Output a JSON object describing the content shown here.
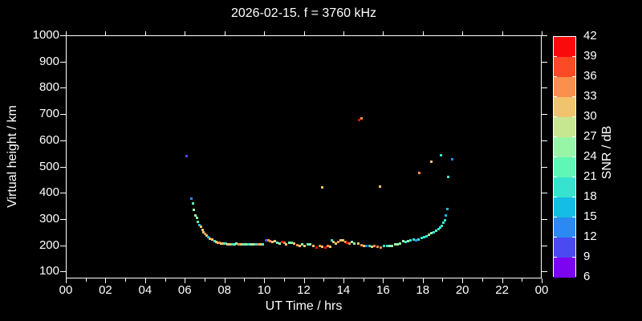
{
  "title": "2026-02-15. f = 3760 kHz",
  "colors": {
    "background": "#000000",
    "foreground": "#ffffff"
  },
  "x_axis": {
    "label": "UT Time / hrs",
    "tick_labels": [
      "00",
      "02",
      "04",
      "06",
      "08",
      "10",
      "12",
      "14",
      "16",
      "18",
      "20",
      "22",
      "00"
    ]
  },
  "y_axis": {
    "label": "Virtual height / km",
    "tick_labels": [
      "1000",
      "900",
      "800",
      "700",
      "600",
      "500",
      "400",
      "300",
      "200",
      "100"
    ]
  },
  "colorbar": {
    "label": "SNR / dB",
    "tick_labels": [
      "42",
      "39",
      "36",
      "33",
      "30",
      "27",
      "24",
      "21",
      "18",
      "15",
      "12",
      "9",
      "6"
    ],
    "colors_top_to_bottom": [
      "#fa0b0b",
      "#fb4a24",
      "#fb8f4c",
      "#f0c46c",
      "#c6e78f",
      "#97f5a7",
      "#5ff7b5",
      "#36e3cf",
      "#13bde5",
      "#2a89f2",
      "#4b49f2",
      "#7c04f0"
    ]
  },
  "chart_data": {
    "type": "scatter",
    "title": "2026-02-15. f = 3760 kHz",
    "xlabel": "UT Time / hrs",
    "ylabel": "Virtual height / km",
    "colorbar_label": "SNR / dB",
    "x_range_hours": [
      0,
      24
    ],
    "x_tick_step_hours": 2,
    "y_range_km": [
      70,
      1000
    ],
    "y_tick_step_km": 100,
    "snr_range_db": [
      6,
      42
    ],
    "snr_tick_step_db": 3,
    "grid": false,
    "legend": "colorbar-right",
    "points_format": [
      "ut_hour",
      "virtual_height_km",
      "snr_db"
    ],
    "points": [
      [
        6.07,
        542,
        10.5
      ],
      [
        6.28,
        382,
        13.5
      ],
      [
        6.36,
        361,
        22.5
      ],
      [
        6.42,
        337,
        25.5
      ],
      [
        6.5,
        318,
        25.5
      ],
      [
        6.56,
        306,
        25.5
      ],
      [
        6.62,
        291,
        22.5
      ],
      [
        6.68,
        279,
        16.5
      ],
      [
        6.76,
        273,
        31.5
      ],
      [
        6.84,
        261,
        31.5
      ],
      [
        6.92,
        252,
        31.5
      ],
      [
        7.0,
        246,
        34.5
      ],
      [
        7.08,
        240,
        31.5
      ],
      [
        7.16,
        234,
        16.5
      ],
      [
        7.24,
        228,
        31.5
      ],
      [
        7.36,
        224,
        31.5
      ],
      [
        7.48,
        218,
        19.5
      ],
      [
        7.56,
        216,
        31.5
      ],
      [
        7.64,
        214,
        31.5
      ],
      [
        7.72,
        213,
        34.5
      ],
      [
        7.8,
        211,
        31.5
      ],
      [
        7.88,
        210,
        31.5
      ],
      [
        7.96,
        209,
        22.5
      ],
      [
        8.04,
        208,
        19.5
      ],
      [
        8.12,
        207,
        31.5
      ],
      [
        8.22,
        207,
        31.5
      ],
      [
        8.34,
        206,
        19.5
      ],
      [
        8.46,
        207,
        22.5
      ],
      [
        8.58,
        208,
        25.5
      ],
      [
        8.7,
        206,
        34.5
      ],
      [
        8.82,
        207,
        31.5
      ],
      [
        8.94,
        206,
        22.5
      ],
      [
        9.06,
        207,
        25.5
      ],
      [
        9.18,
        206,
        19.5
      ],
      [
        9.3,
        207,
        25.5
      ],
      [
        9.42,
        206,
        28.5
      ],
      [
        9.54,
        207,
        19.5
      ],
      [
        9.66,
        206,
        34.5
      ],
      [
        9.78,
        207,
        31.5
      ],
      [
        9.9,
        206,
        22.5
      ],
      [
        10.04,
        221,
        10.5
      ],
      [
        10.16,
        221,
        34.5
      ],
      [
        10.26,
        218,
        34.5
      ],
      [
        10.38,
        216,
        31.5
      ],
      [
        10.5,
        218,
        31.5
      ],
      [
        10.64,
        213,
        22.5
      ],
      [
        10.74,
        210,
        25.5
      ],
      [
        10.86,
        216,
        40.5
      ],
      [
        10.98,
        213,
        34.5
      ],
      [
        11.08,
        207,
        31.5
      ],
      [
        11.22,
        213,
        25.5
      ],
      [
        11.34,
        213,
        22.5
      ],
      [
        11.46,
        210,
        31.5
      ],
      [
        11.62,
        204,
        34.5
      ],
      [
        11.74,
        201,
        31.5
      ],
      [
        11.88,
        207,
        25.5
      ],
      [
        12.02,
        201,
        31.5
      ],
      [
        12.18,
        207,
        22.5
      ],
      [
        12.3,
        207,
        25.5
      ],
      [
        12.44,
        201,
        31.5
      ],
      [
        12.6,
        195,
        40.5
      ],
      [
        12.76,
        201,
        34.5
      ],
      [
        12.88,
        198,
        31.5
      ],
      [
        12.88,
        424,
        31.5
      ],
      [
        13.04,
        195,
        40.5
      ],
      [
        13.16,
        201,
        34.5
      ],
      [
        13.28,
        198,
        31.5
      ],
      [
        13.38,
        222,
        19.5
      ],
      [
        13.46,
        216,
        31.5
      ],
      [
        13.58,
        210,
        31.5
      ],
      [
        13.7,
        216,
        34.5
      ],
      [
        13.82,
        222,
        31.5
      ],
      [
        13.94,
        222,
        31.5
      ],
      [
        14.06,
        216,
        34.5
      ],
      [
        14.14,
        213,
        40.5
      ],
      [
        14.26,
        210,
        34.5
      ],
      [
        14.38,
        216,
        25.5
      ],
      [
        14.5,
        210,
        25.5
      ],
      [
        14.72,
        210,
        31.5
      ],
      [
        14.76,
        680,
        40.5
      ],
      [
        14.86,
        687,
        34.5
      ],
      [
        14.88,
        204,
        34.5
      ],
      [
        15.0,
        201,
        31.5
      ],
      [
        15.12,
        201,
        13.5
      ],
      [
        15.26,
        201,
        19.5
      ],
      [
        15.4,
        198,
        31.5
      ],
      [
        15.54,
        201,
        34.5
      ],
      [
        15.68,
        198,
        34.5
      ],
      [
        15.8,
        427,
        31.5
      ],
      [
        15.84,
        195,
        34.5
      ],
      [
        16.0,
        201,
        19.5
      ],
      [
        16.16,
        201,
        19.5
      ],
      [
        16.28,
        201,
        25.5
      ],
      [
        16.42,
        201,
        25.5
      ],
      [
        16.56,
        207,
        25.5
      ],
      [
        16.7,
        207,
        25.5
      ],
      [
        16.82,
        210,
        25.5
      ],
      [
        16.96,
        219,
        25.5
      ],
      [
        17.1,
        216,
        19.5
      ],
      [
        17.24,
        219,
        25.5
      ],
      [
        17.36,
        222,
        19.5
      ],
      [
        17.5,
        225,
        19.5
      ],
      [
        17.64,
        222,
        13.5
      ],
      [
        17.76,
        225,
        19.5
      ],
      [
        17.8,
        479,
        34.5
      ],
      [
        17.9,
        231,
        19.5
      ],
      [
        18.02,
        234,
        19.5
      ],
      [
        18.14,
        237,
        19.5
      ],
      [
        18.26,
        243,
        25.5
      ],
      [
        18.38,
        249,
        25.5
      ],
      [
        18.4,
        521,
        31.5
      ],
      [
        18.5,
        252,
        19.5
      ],
      [
        18.62,
        258,
        22.5
      ],
      [
        18.74,
        264,
        19.5
      ],
      [
        18.84,
        270,
        19.5
      ],
      [
        18.88,
        545,
        19.5
      ],
      [
        18.94,
        276,
        19.5
      ],
      [
        19.02,
        288,
        19.5
      ],
      [
        19.08,
        297,
        19.5
      ],
      [
        19.14,
        315,
        16.5
      ],
      [
        19.2,
        342,
        16.5
      ],
      [
        19.26,
        464,
        19.5
      ],
      [
        19.44,
        530,
        13.5
      ]
    ]
  }
}
